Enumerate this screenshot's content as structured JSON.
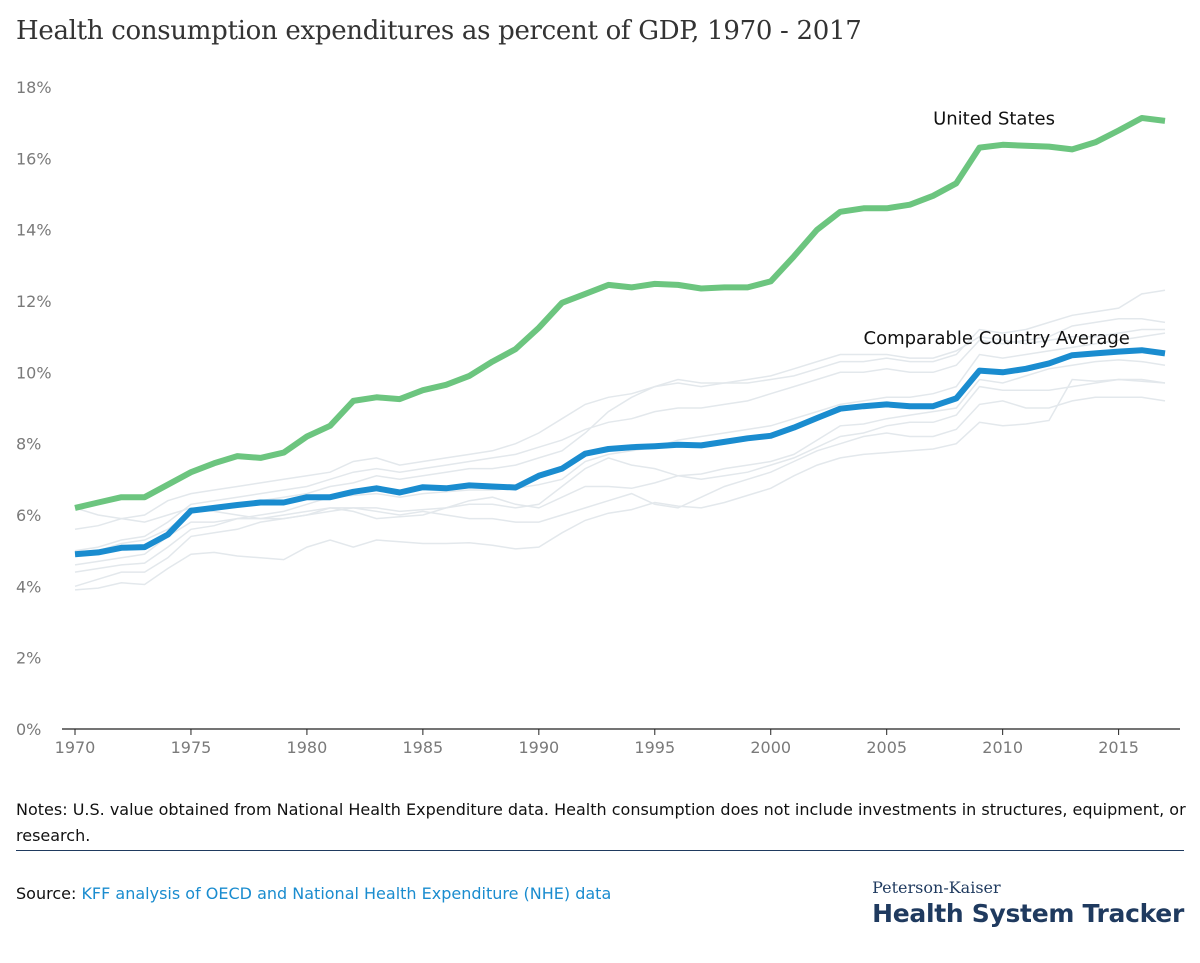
{
  "title": "Health consumption expenditures as percent of GDP, 1970 - 2017",
  "notes": "Notes: U.S. value obtained from National Health Expenditure data. Health consumption does not include investments in structures, equipment, or research.",
  "source": {
    "label": "Source:",
    "text": "KFF analysis of OECD and National Health Expenditure (NHE) data"
  },
  "brand": {
    "sub": "Peterson-Kaiser",
    "main": "Health System Tracker"
  },
  "colors": {
    "us": "#6cc57f",
    "average": "#1a8ccf",
    "background_lines": "#e3e8ec",
    "axis": "#222222",
    "tick_text": "#7a7a7a"
  },
  "chart_data": {
    "type": "line",
    "ylim": [
      0,
      18
    ],
    "xlim": [
      1970,
      2017
    ],
    "y_ticks": [
      0,
      2,
      4,
      6,
      8,
      10,
      12,
      14,
      16,
      18
    ],
    "y_tick_labels": [
      "0%",
      "2%",
      "4%",
      "6%",
      "8%",
      "10%",
      "12%",
      "14%",
      "16%",
      "18%"
    ],
    "x_ticks": [
      1970,
      1975,
      1980,
      1985,
      1990,
      1995,
      2000,
      2005,
      2010,
      2015
    ],
    "x_tick_labels": [
      "1970",
      "1975",
      "1980",
      "1985",
      "1990",
      "1995",
      "2000",
      "2005",
      "2010",
      "2015"
    ],
    "grid": false,
    "x": [
      1970,
      1971,
      1972,
      1973,
      1974,
      1975,
      1976,
      1977,
      1978,
      1979,
      1980,
      1981,
      1982,
      1983,
      1984,
      1985,
      1986,
      1987,
      1988,
      1989,
      1990,
      1991,
      1992,
      1993,
      1994,
      1995,
      1996,
      1997,
      1998,
      1999,
      2000,
      2001,
      2002,
      2003,
      2004,
      2005,
      2006,
      2007,
      2008,
      2009,
      2010,
      2011,
      2012,
      2013,
      2014,
      2015,
      2016,
      2017
    ],
    "series": [
      {
        "name": "United States",
        "role": "us",
        "values": [
          6.2,
          6.35,
          6.5,
          6.5,
          6.85,
          7.2,
          7.45,
          7.65,
          7.6,
          7.75,
          8.2,
          8.5,
          9.2,
          9.3,
          9.25,
          9.5,
          9.65,
          9.9,
          10.3,
          10.65,
          11.25,
          11.95,
          12.2,
          12.45,
          12.38,
          12.48,
          12.45,
          12.35,
          12.38,
          12.38,
          12.55,
          13.25,
          14.0,
          14.5,
          14.6,
          14.6,
          14.7,
          14.95,
          15.3,
          16.3,
          16.38,
          16.35,
          16.33,
          16.25,
          16.45,
          16.78,
          17.13,
          17.05
        ]
      },
      {
        "name": "Comparable Country Average",
        "role": "average",
        "values": [
          4.9,
          4.95,
          5.08,
          5.1,
          5.45,
          6.12,
          6.2,
          6.28,
          6.35,
          6.35,
          6.5,
          6.5,
          6.65,
          6.75,
          6.63,
          6.78,
          6.75,
          6.83,
          6.8,
          6.77,
          7.1,
          7.3,
          7.72,
          7.85,
          7.9,
          7.93,
          7.97,
          7.95,
          8.05,
          8.15,
          8.22,
          8.45,
          8.72,
          8.98,
          9.05,
          9.1,
          9.05,
          9.05,
          9.27,
          10.05,
          10.0,
          10.1,
          10.25,
          10.48,
          10.53,
          10.58,
          10.62,
          10.53
        ]
      }
    ],
    "background_countries": [
      [
        3.9,
        3.95,
        4.1,
        4.05,
        4.5,
        4.9,
        4.95,
        4.85,
        4.8,
        4.75,
        5.1,
        5.3,
        5.1,
        5.3,
        5.25,
        5.2,
        5.2,
        5.22,
        5.15,
        5.05,
        5.1,
        5.5,
        5.85,
        6.05,
        6.15,
        6.35,
        6.25,
        6.2,
        6.35,
        6.55,
        6.75,
        7.1,
        7.4,
        7.6,
        7.7,
        7.75,
        7.8,
        7.85,
        8.0,
        8.6,
        8.5,
        8.55,
        8.65,
        9.8,
        9.75,
        9.8,
        9.75,
        9.7
      ],
      [
        4.0,
        4.2,
        4.4,
        4.4,
        4.8,
        5.4,
        5.5,
        5.6,
        5.8,
        5.9,
        6.0,
        6.2,
        6.1,
        5.9,
        5.95,
        6.0,
        6.2,
        6.4,
        6.5,
        6.3,
        6.2,
        6.5,
        6.8,
        6.8,
        6.75,
        6.9,
        7.1,
        7.15,
        7.3,
        7.4,
        7.5,
        7.7,
        8.1,
        8.5,
        8.55,
        8.7,
        8.8,
        8.9,
        9.0,
        9.8,
        9.7,
        9.9,
        10.1,
        10.2,
        10.3,
        10.35,
        10.3,
        10.2
      ],
      [
        4.4,
        4.5,
        4.6,
        4.65,
        5.1,
        5.6,
        5.7,
        5.9,
        6.0,
        6.1,
        6.3,
        6.5,
        6.55,
        6.6,
        6.5,
        6.6,
        6.65,
        6.7,
        6.7,
        6.75,
        6.85,
        7.0,
        7.5,
        7.7,
        7.8,
        7.9,
        8.1,
        8.2,
        8.3,
        8.4,
        8.5,
        8.7,
        8.9,
        9.1,
        9.2,
        9.3,
        9.3,
        9.4,
        9.6,
        10.5,
        10.4,
        10.5,
        10.6,
        10.7,
        10.8,
        10.9,
        11.0,
        11.1
      ],
      [
        5.0,
        5.1,
        5.3,
        5.4,
        5.8,
        6.3,
        6.4,
        6.5,
        6.6,
        6.7,
        6.8,
        7.0,
        7.2,
        7.3,
        7.2,
        7.3,
        7.4,
        7.5,
        7.6,
        7.7,
        7.9,
        8.1,
        8.4,
        8.6,
        8.7,
        8.9,
        9.0,
        9.0,
        9.1,
        9.2,
        9.4,
        9.6,
        9.8,
        10.0,
        10.0,
        10.1,
        10.0,
        10.0,
        10.2,
        10.9,
        10.8,
        10.9,
        11.0,
        11.3,
        11.4,
        11.5,
        11.5,
        11.4
      ],
      [
        5.6,
        5.7,
        5.9,
        6.0,
        6.4,
        6.6,
        6.7,
        6.8,
        6.9,
        7.0,
        7.1,
        7.2,
        7.5,
        7.6,
        7.4,
        7.5,
        7.6,
        7.7,
        7.8,
        8.0,
        8.3,
        8.7,
        9.1,
        9.3,
        9.4,
        9.6,
        9.7,
        9.6,
        9.7,
        9.7,
        9.8,
        9.9,
        10.1,
        10.3,
        10.3,
        10.4,
        10.3,
        10.3,
        10.5,
        11.2,
        11.1,
        11.2,
        11.4,
        11.6,
        11.7,
        11.8,
        12.2,
        12.3
      ],
      [
        6.2,
        6.0,
        5.9,
        5.8,
        6.0,
        6.2,
        6.1,
        6.0,
        5.9,
        5.9,
        6.0,
        6.1,
        6.2,
        6.2,
        6.1,
        6.15,
        6.2,
        6.3,
        6.3,
        6.2,
        6.3,
        6.8,
        7.3,
        7.6,
        7.4,
        7.3,
        7.1,
        7.0,
        7.1,
        7.2,
        7.4,
        7.6,
        7.9,
        8.2,
        8.3,
        8.5,
        8.6,
        8.6,
        8.8,
        9.6,
        9.5,
        9.5,
        9.5,
        9.6,
        9.7,
        9.8,
        9.8,
        9.7
      ],
      [
        4.6,
        4.7,
        4.8,
        4.9,
        5.4,
        5.8,
        5.8,
        5.9,
        5.9,
        6.0,
        6.1,
        6.2,
        6.2,
        6.1,
        6.0,
        6.1,
        6.0,
        5.9,
        5.9,
        5.8,
        5.8,
        6.0,
        6.2,
        6.4,
        6.6,
        6.3,
        6.2,
        6.5,
        6.8,
        7.0,
        7.2,
        7.5,
        7.8,
        8.0,
        8.2,
        8.3,
        8.2,
        8.2,
        8.4,
        9.1,
        9.2,
        9.0,
        9.0,
        9.2,
        9.3,
        9.3,
        9.3,
        9.2
      ],
      [
        4.9,
        5.0,
        5.2,
        5.3,
        5.6,
        6.1,
        6.2,
        6.3,
        6.4,
        6.5,
        6.6,
        6.8,
        6.9,
        7.1,
        7.0,
        7.1,
        7.2,
        7.3,
        7.3,
        7.4,
        7.6,
        7.8,
        8.3,
        8.9,
        9.3,
        9.6,
        9.8,
        9.7,
        9.7,
        9.8,
        9.9,
        10.1,
        10.3,
        10.5,
        10.5,
        10.5,
        10.4,
        10.4,
        10.6,
        11.0,
        10.9,
        10.8,
        10.9,
        11.0,
        11.0,
        11.1,
        11.2,
        11.2
      ]
    ],
    "annotations": [
      {
        "text": "United States",
        "x": 2007,
        "y": 16.95
      },
      {
        "text": "Comparable Country Average",
        "x": 2004,
        "y": 10.8
      }
    ]
  }
}
